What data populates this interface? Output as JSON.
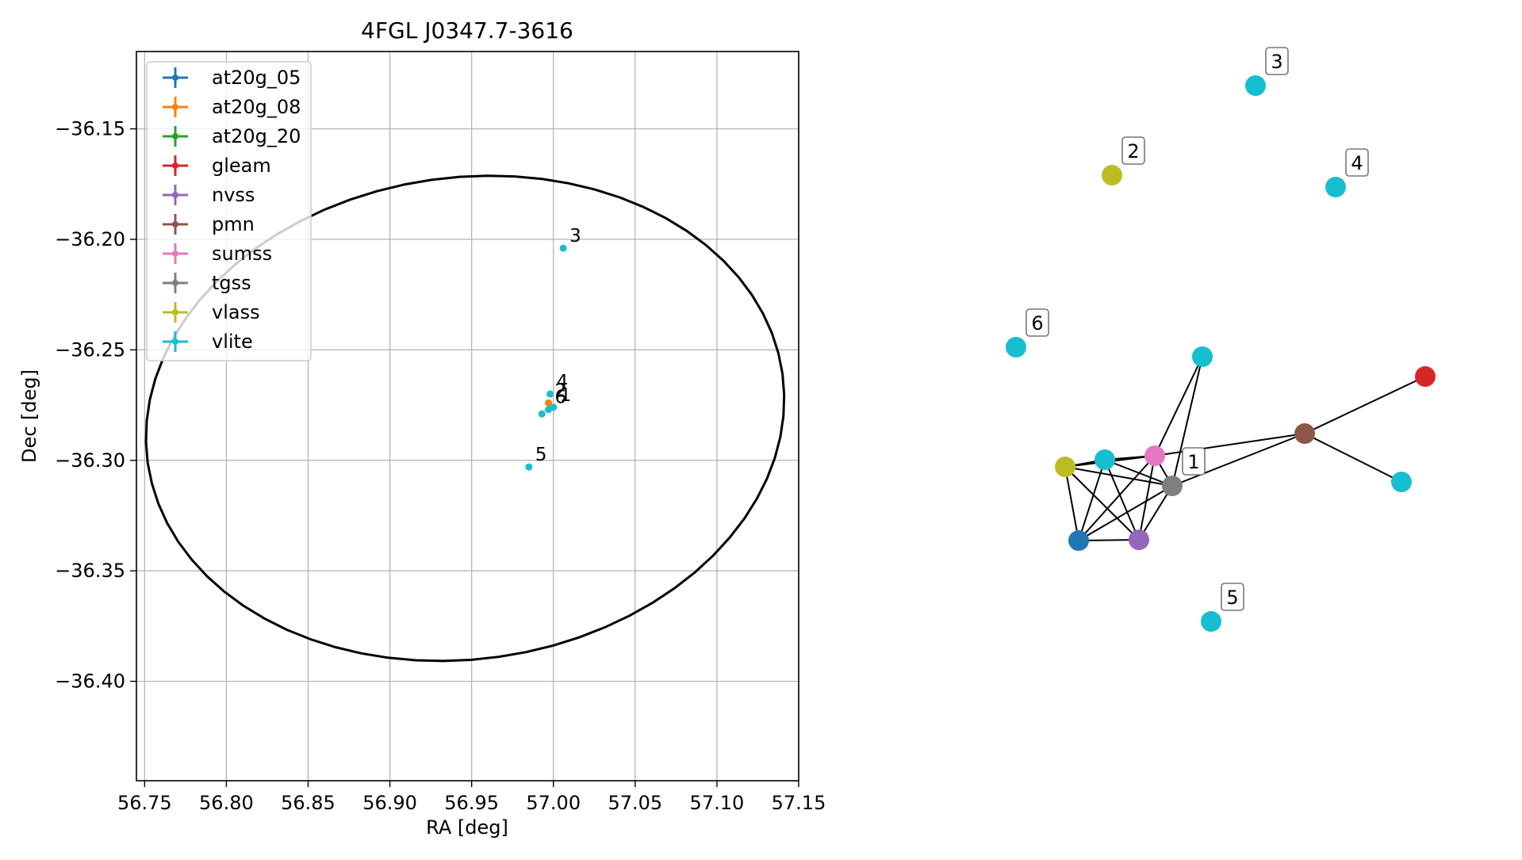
{
  "chart_data": [
    {
      "type": "scatter",
      "title": "4FGL J0347.7-3616",
      "xlabel": "RA [deg]",
      "ylabel": "Dec [deg]",
      "xlim": [
        56.745,
        57.15
      ],
      "ylim": [
        -36.445,
        -36.115
      ],
      "xticks": [
        56.75,
        56.8,
        56.85,
        56.9,
        56.95,
        57.0,
        57.05,
        57.1,
        57.15
      ],
      "xtick_labels": [
        "56.75",
        "56.80",
        "56.85",
        "56.90",
        "56.95",
        "57.00",
        "57.05",
        "57.10",
        "57.15"
      ],
      "yticks": [
        -36.15,
        -36.2,
        -36.25,
        -36.3,
        -36.35,
        -36.4
      ],
      "ytick_labels": [
        "−36.15",
        "−36.20",
        "−36.25",
        "−36.30",
        "−36.35",
        "−36.40"
      ],
      "grid": true,
      "legend_position": "upper-left",
      "legend": [
        {
          "name": "at20g_05",
          "color": "#1f77b4"
        },
        {
          "name": "at20g_08",
          "color": "#ff7f0e"
        },
        {
          "name": "at20g_20",
          "color": "#2ca02c"
        },
        {
          "name": "gleam",
          "color": "#d62728"
        },
        {
          "name": "nvss",
          "color": "#9467bd"
        },
        {
          "name": "pmn",
          "color": "#8c564b"
        },
        {
          "name": "sumss",
          "color": "#e377c2"
        },
        {
          "name": "tgss",
          "color": "#7f7f7f"
        },
        {
          "name": "vlass",
          "color": "#bcbd22"
        },
        {
          "name": "vlite",
          "color": "#17becf"
        }
      ],
      "ellipse": {
        "center": [
          56.946,
          -36.281
        ],
        "semi_axis_ra": 0.196,
        "semi_axis_dec": 0.109,
        "angle_deg": -8
      },
      "points": [
        {
          "catalog": "vlite",
          "ra": 57.006,
          "dec": -36.204,
          "label": "3"
        },
        {
          "catalog": "vlite",
          "ra": 56.998,
          "dec": -36.27,
          "label": "4"
        },
        {
          "catalog": "at20g_08",
          "ra": 56.997,
          "dec": -36.274,
          "label": "2"
        },
        {
          "catalog": "vlite",
          "ra": 57.0,
          "dec": -36.276,
          "label": "1"
        },
        {
          "catalog": "vlite",
          "ra": 56.997,
          "dec": -36.277,
          "label": "6"
        },
        {
          "catalog": "vlite",
          "ra": 56.993,
          "dec": -36.279,
          "label": ""
        },
        {
          "catalog": "vlite",
          "ra": 56.985,
          "dec": -36.303,
          "label": "5"
        }
      ]
    },
    {
      "type": "network",
      "nodes": [
        {
          "id": "n_vlite_3",
          "catalog": "vlite",
          "color": "#17becf",
          "label": "3"
        },
        {
          "id": "n_vlass_2",
          "catalog": "vlass",
          "color": "#bcbd22",
          "label": "2"
        },
        {
          "id": "n_vlite_4",
          "catalog": "vlite",
          "color": "#17becf",
          "label": "4"
        },
        {
          "id": "n_vlite_6",
          "catalog": "vlite",
          "color": "#17becf",
          "label": "6"
        },
        {
          "id": "n_vlite_top",
          "catalog": "vlite",
          "color": "#17becf",
          "label": ""
        },
        {
          "id": "n_gleam",
          "catalog": "gleam",
          "color": "#d62728",
          "label": ""
        },
        {
          "id": "n_pmn",
          "catalog": "pmn",
          "color": "#8c564b",
          "label": ""
        },
        {
          "id": "n_vlite_right",
          "catalog": "vlite",
          "color": "#17becf",
          "label": ""
        },
        {
          "id": "n_sumss",
          "catalog": "sumss",
          "color": "#e377c2",
          "label": ""
        },
        {
          "id": "n_tgss",
          "catalog": "tgss",
          "color": "#7f7f7f",
          "label": "1"
        },
        {
          "id": "n_vlass_c",
          "catalog": "vlass",
          "color": "#bcbd22",
          "label": ""
        },
        {
          "id": "n_vlite_c",
          "catalog": "vlite",
          "color": "#17becf",
          "label": ""
        },
        {
          "id": "n_at20g",
          "catalog": "at20g_05",
          "color": "#1f77b4",
          "label": ""
        },
        {
          "id": "n_nvss",
          "catalog": "nvss",
          "color": "#9467bd",
          "label": ""
        },
        {
          "id": "n_vlite_5",
          "catalog": "vlite",
          "color": "#17becf",
          "label": "5"
        }
      ],
      "edges": [
        [
          "n_vlass_c",
          "n_vlite_c"
        ],
        [
          "n_vlass_c",
          "n_sumss"
        ],
        [
          "n_vlass_c",
          "n_tgss"
        ],
        [
          "n_vlass_c",
          "n_at20g"
        ],
        [
          "n_vlass_c",
          "n_nvss"
        ],
        [
          "n_vlite_c",
          "n_sumss"
        ],
        [
          "n_vlite_c",
          "n_tgss"
        ],
        [
          "n_vlite_c",
          "n_at20g"
        ],
        [
          "n_vlite_c",
          "n_nvss"
        ],
        [
          "n_sumss",
          "n_tgss"
        ],
        [
          "n_sumss",
          "n_at20g"
        ],
        [
          "n_sumss",
          "n_nvss"
        ],
        [
          "n_sumss",
          "n_pmn"
        ],
        [
          "n_sumss",
          "n_vlite_top"
        ],
        [
          "n_tgss",
          "n_at20g"
        ],
        [
          "n_tgss",
          "n_nvss"
        ],
        [
          "n_tgss",
          "n_pmn"
        ],
        [
          "n_tgss",
          "n_vlite_top"
        ],
        [
          "n_at20g",
          "n_nvss"
        ],
        [
          "n_pmn",
          "n_gleam"
        ],
        [
          "n_pmn",
          "n_vlite_right"
        ]
      ]
    }
  ]
}
